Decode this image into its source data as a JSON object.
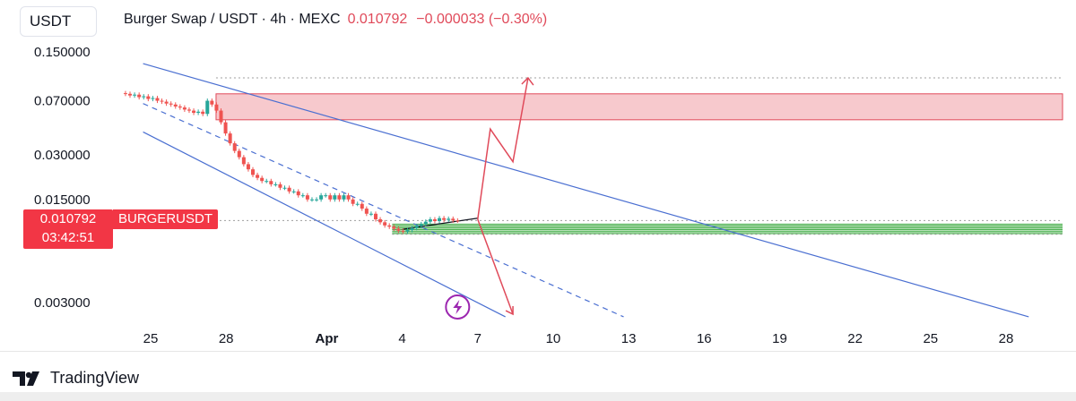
{
  "header": {
    "symbol_box": "USDT",
    "title": "Burger Swap / USDT · 4h · MEXC",
    "price": "0.010792",
    "change": "−0.000033 (−0.30%)"
  },
  "price_tag": {
    "price": "0.010792",
    "countdown": "03:42:51",
    "symbol": "BURGERUSDT"
  },
  "brand": {
    "name": "TradingView",
    "logo_icon": "tradingview-logo-icon"
  },
  "colors": {
    "bull": "#26a69a",
    "bear": "#ef5350",
    "channel": "#4a6fd1",
    "resistance_zone": "#f7c9cd",
    "resistance_border": "#e04a5a",
    "support_zone": "#b7e1b8",
    "support_lines": "#4caf50",
    "forecast_arrow": "#e04a5a",
    "lightning_badge": "#9c27b0"
  },
  "chart_data": {
    "type": "candlestick",
    "title": "Burger Swap / USDT · 4h · MEXC",
    "y_scale": "log",
    "ylim": [
      0.002,
      0.2
    ],
    "y_ticks": [
      "0.150000",
      "0.070000",
      "0.030000",
      "0.015000",
      "0.003000"
    ],
    "y_tick_values": [
      0.15,
      0.07,
      0.03,
      0.015,
      0.003
    ],
    "x_ticks": [
      "25",
      "28",
      "Apr",
      "4",
      "7",
      "10",
      "13",
      "16",
      "19",
      "22",
      "25",
      "28"
    ],
    "x_tick_days": [
      25,
      28,
      32,
      35,
      38,
      41,
      44,
      47,
      50,
      53,
      56,
      59
    ],
    "xlim_days": [
      23.5,
      61.5
    ],
    "current_price": 0.010792,
    "close_series": [
      0.078,
      0.076,
      0.077,
      0.074,
      0.075,
      0.072,
      0.073,
      0.07,
      0.069,
      0.067,
      0.066,
      0.064,
      0.063,
      0.061,
      0.06,
      0.058,
      0.059,
      0.057,
      0.07,
      0.066,
      0.06,
      0.05,
      0.042,
      0.036,
      0.032,
      0.029,
      0.026,
      0.024,
      0.022,
      0.021,
      0.02,
      0.02,
      0.019,
      0.019,
      0.018,
      0.018,
      0.017,
      0.017,
      0.016,
      0.016,
      0.015,
      0.015,
      0.015,
      0.016,
      0.016,
      0.015,
      0.016,
      0.015,
      0.016,
      0.015,
      0.014,
      0.014,
      0.013,
      0.012,
      0.012,
      0.011,
      0.0105,
      0.01,
      0.0098,
      0.0095,
      0.0092,
      0.0091,
      0.0093,
      0.0096,
      0.0099,
      0.0102,
      0.0106,
      0.011,
      0.0107,
      0.0112,
      0.0109,
      0.0111,
      0.0108,
      0.010792
    ],
    "x_start_day": 24.0,
    "x_end_day": 37.2,
    "resistance_zone": [
      0.052,
      0.078
    ],
    "support_zone": [
      0.0088,
      0.0102
    ],
    "annotations": [
      "ascending channel lines",
      "bullish forecast arrow",
      "bearish forecast arrow"
    ]
  }
}
